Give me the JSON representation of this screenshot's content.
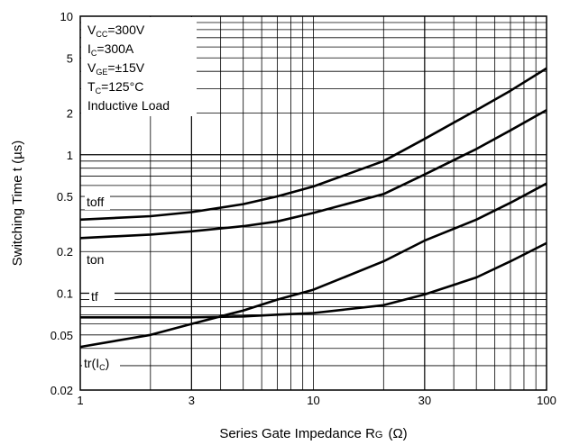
{
  "chart_data": {
    "type": "line",
    "title": "",
    "xlabel": {
      "main": "Series Gate Impedance R",
      "sub": "G",
      "unit": "(Ω)"
    },
    "ylabel": "Switching Time t  (µs)",
    "x_scale": "log",
    "y_scale": "log",
    "xlim": [
      1,
      100
    ],
    "ylim": [
      0.02,
      10
    ],
    "x_ticks": [
      {
        "value": 1,
        "label": "1"
      },
      {
        "value": 3,
        "label": "3"
      },
      {
        "value": 10,
        "label": "10"
      },
      {
        "value": 30,
        "label": "30"
      },
      {
        "value": 100,
        "label": "100"
      }
    ],
    "y_ticks": [
      {
        "value": 0.02,
        "label": "0.02"
      },
      {
        "value": 0.05,
        "label": "0.05"
      },
      {
        "value": 0.1,
        "label": "0.1"
      },
      {
        "value": 0.2,
        "label": "0.2"
      },
      {
        "value": 0.5,
        "label": "0.5"
      },
      {
        "value": 1,
        "label": "1"
      },
      {
        "value": 2,
        "label": "2"
      },
      {
        "value": 5,
        "label": "5"
      },
      {
        "value": 10,
        "label": "10"
      }
    ],
    "grid": true,
    "conditions": [
      {
        "main": "V",
        "sub": "CC",
        "rest": "=300V"
      },
      {
        "main": "I",
        "sub": "C",
        "rest": "=300A"
      },
      {
        "main": "V",
        "sub": "GE",
        "rest": "=±15V"
      },
      {
        "main": "T",
        "sub": "C",
        "rest": "=125°C"
      },
      {
        "main": "Inductive Load",
        "sub": "",
        "rest": ""
      }
    ],
    "series": [
      {
        "name": "toff",
        "points": [
          [
            1,
            0.34
          ],
          [
            2,
            0.36
          ],
          [
            3,
            0.385
          ],
          [
            5,
            0.44
          ],
          [
            7,
            0.5
          ],
          [
            10,
            0.59
          ],
          [
            20,
            0.9
          ],
          [
            30,
            1.3
          ],
          [
            50,
            2.1
          ],
          [
            70,
            2.9
          ],
          [
            100,
            4.2
          ]
        ]
      },
      {
        "name": "ton",
        "points": [
          [
            1,
            0.25
          ],
          [
            2,
            0.265
          ],
          [
            3,
            0.28
          ],
          [
            5,
            0.305
          ],
          [
            7,
            0.33
          ],
          [
            10,
            0.38
          ],
          [
            20,
            0.52
          ],
          [
            30,
            0.72
          ],
          [
            50,
            1.1
          ],
          [
            70,
            1.5
          ],
          [
            100,
            2.1
          ]
        ]
      },
      {
        "name": "tf",
        "points": [
          [
            1,
            0.067
          ],
          [
            2,
            0.067
          ],
          [
            3,
            0.067
          ],
          [
            5,
            0.068
          ],
          [
            7,
            0.07
          ],
          [
            10,
            0.072
          ],
          [
            20,
            0.082
          ],
          [
            30,
            0.098
          ],
          [
            50,
            0.13
          ],
          [
            70,
            0.17
          ],
          [
            100,
            0.23
          ]
        ]
      },
      {
        "name": "tr(IC)",
        "points": [
          [
            1,
            0.041
          ],
          [
            2,
            0.05
          ],
          [
            3,
            0.06
          ],
          [
            5,
            0.075
          ],
          [
            7,
            0.09
          ],
          [
            10,
            0.106
          ],
          [
            20,
            0.17
          ],
          [
            30,
            0.24
          ],
          [
            50,
            0.34
          ],
          [
            70,
            0.45
          ],
          [
            100,
            0.62
          ]
        ]
      }
    ],
    "curve_labels": [
      {
        "main": "toff",
        "sub": "",
        "rest": ""
      },
      {
        "main": "ton",
        "sub": "",
        "rest": ""
      },
      {
        "main": "tf",
        "sub": "",
        "rest": ""
      },
      {
        "main": "tr(I",
        "sub": "C",
        "rest": ")"
      }
    ]
  }
}
